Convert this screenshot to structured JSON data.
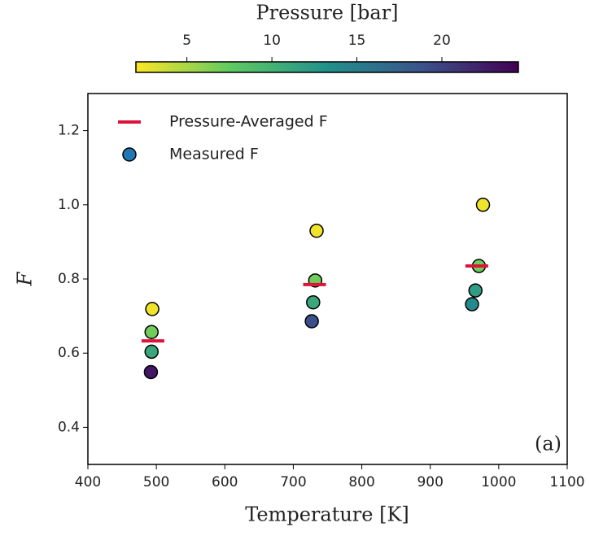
{
  "chart_data": {
    "type": "scatter",
    "x_label": "Temperature [K]",
    "y_label": "F",
    "annotation": "(a)",
    "xlim": [
      400,
      1100
    ],
    "xticks": [
      400,
      500,
      600,
      700,
      800,
      900,
      1000,
      1100
    ],
    "ylim": [
      0.3,
      1.3
    ],
    "yticks": [
      0.4,
      0.6,
      0.8,
      1.0,
      1.2
    ],
    "legend": "upper left",
    "colormap": "viridis_r",
    "colorbar": {
      "label": "Pressure [bar]",
      "lim": [
        2,
        24.5
      ],
      "ticks": [
        5,
        10,
        15,
        20
      ]
    },
    "series": [
      {
        "name": "Pressure-Averaged F",
        "marker": "dash",
        "color": "#dc143c",
        "x": [
          495,
          731,
          968
        ],
        "values": [
          0.633,
          0.785,
          0.835
        ]
      },
      {
        "name": "Measured F",
        "marker": "circle",
        "color": "#1f77b4",
        "x": [
          494,
          493,
          493,
          492,
          734,
          732,
          729,
          727,
          977,
          971,
          966,
          961
        ],
        "values": [
          0.719,
          0.657,
          0.604,
          0.549,
          0.93,
          0.796,
          0.737,
          0.686,
          1.0,
          0.835,
          0.769,
          0.732
        ],
        "pressure": [
          2.5,
          7,
          11,
          23,
          2.5,
          7,
          11,
          19,
          2.5,
          7,
          12,
          14
        ]
      }
    ]
  }
}
